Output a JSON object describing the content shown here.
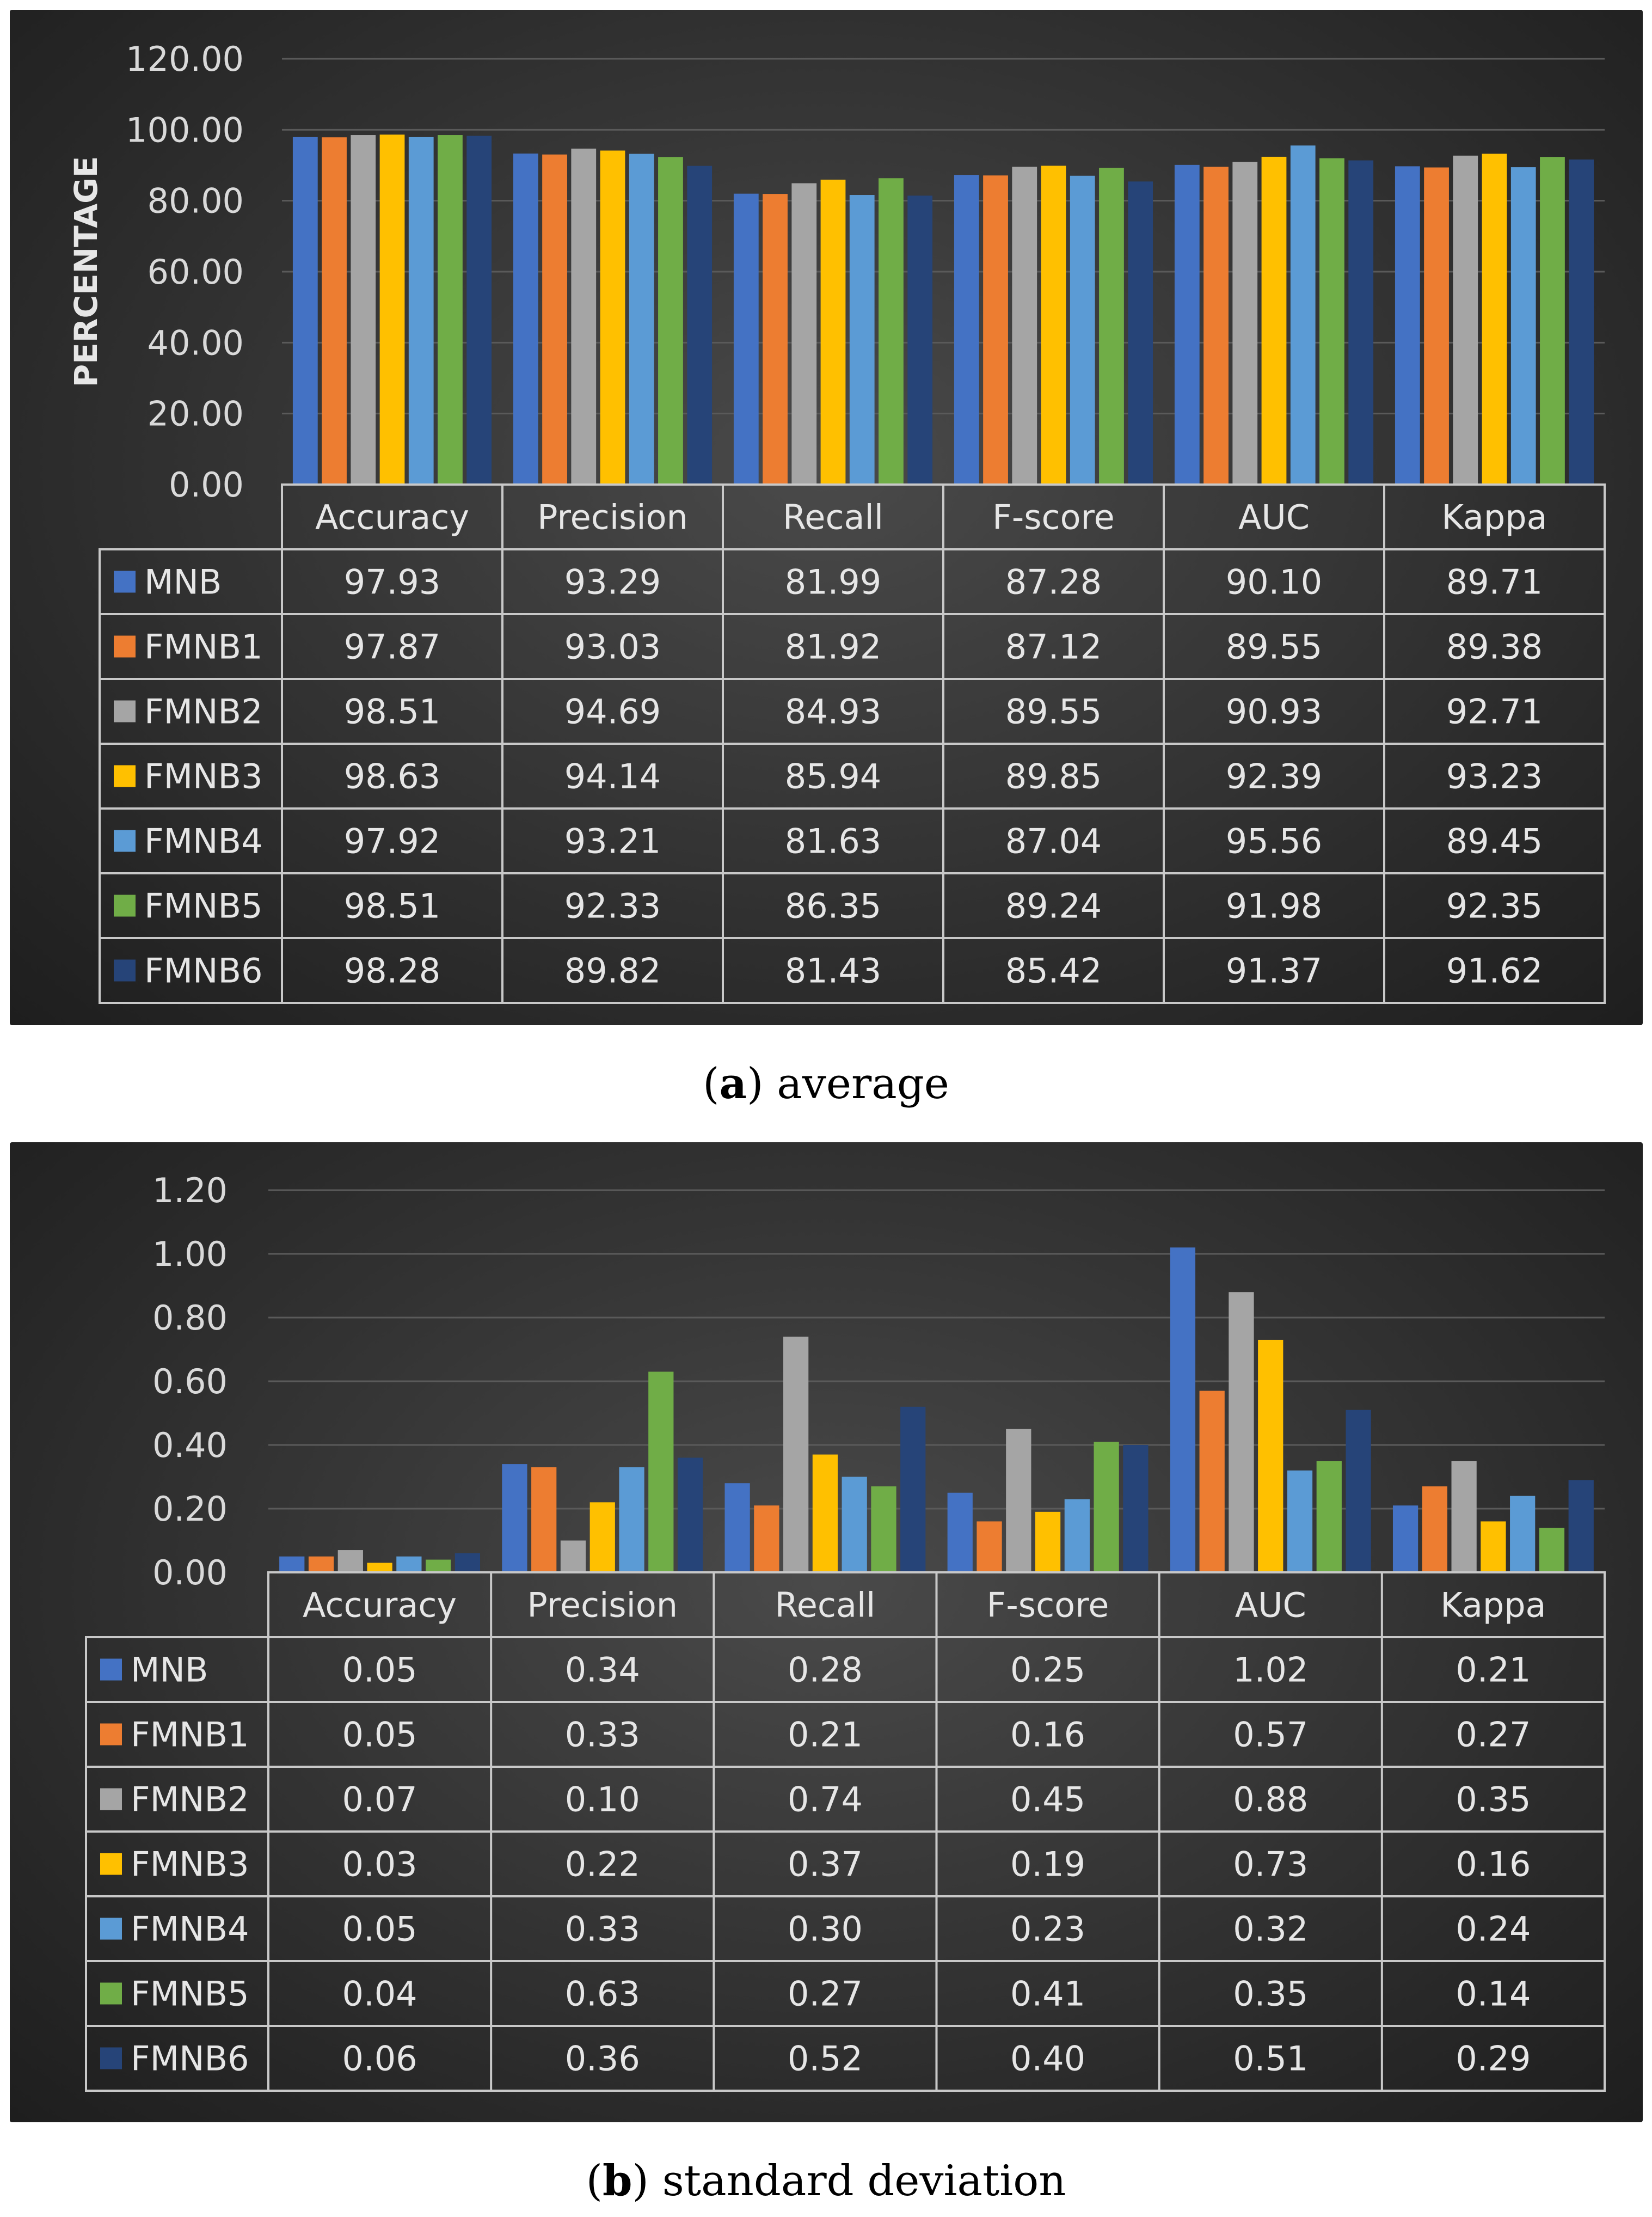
{
  "captions": [
    {
      "letter": "a",
      "text": "average"
    },
    {
      "letter": "b",
      "text": "standard deviation"
    }
  ],
  "colors": {
    "MNB": "#4472c4",
    "FMNB1": "#ed7d31",
    "FMNB2": "#a5a5a5",
    "FMNB3": "#ffc000",
    "FMNB4": "#5b9bd5",
    "FMNB5": "#70ad47",
    "FMNB6": "#264478"
  },
  "chart_data": [
    {
      "type": "bar",
      "title": "",
      "ylabel": "PERCENTAGE",
      "xlabel": "",
      "ylim": [
        0,
        120
      ],
      "yticks": [
        "0.00",
        "20.00",
        "40.00",
        "60.00",
        "80.00",
        "100.00",
        "120.00"
      ],
      "legend": "data-table",
      "categories": [
        "Accuracy",
        "Precision",
        "Recall",
        "F-score",
        "AUC",
        "Kappa"
      ],
      "series": [
        {
          "name": "MNB",
          "values": [
            97.93,
            93.29,
            81.99,
            87.28,
            90.1,
            89.71
          ],
          "labels": [
            "97.93",
            "93.29",
            "81.99",
            "87.28",
            "90.10",
            "89.71"
          ]
        },
        {
          "name": "FMNB1",
          "values": [
            97.87,
            93.03,
            81.92,
            87.12,
            89.55,
            89.38
          ],
          "labels": [
            "97.87",
            "93.03",
            "81.92",
            "87.12",
            "89.55",
            "89.38"
          ]
        },
        {
          "name": "FMNB2",
          "values": [
            98.51,
            94.69,
            84.93,
            89.55,
            90.93,
            92.71
          ],
          "labels": [
            "98.51",
            "94.69",
            "84.93",
            "89.55",
            "90.93",
            "92.71"
          ]
        },
        {
          "name": "FMNB3",
          "values": [
            98.63,
            94.14,
            85.94,
            89.85,
            92.39,
            93.23
          ],
          "labels": [
            "98.63",
            "94.14",
            "85.94",
            "89.85",
            "92.39",
            "93.23"
          ]
        },
        {
          "name": "FMNB4",
          "values": [
            97.92,
            93.21,
            81.63,
            87.04,
            95.56,
            89.45
          ],
          "labels": [
            "97.92",
            "93.21",
            "81.63",
            "87.04",
            "95.56",
            "89.45"
          ]
        },
        {
          "name": "FMNB5",
          "values": [
            98.51,
            92.33,
            86.35,
            89.24,
            91.98,
            92.35
          ],
          "labels": [
            "98.51",
            "92.33",
            "86.35",
            "89.24",
            "91.98",
            "92.35"
          ]
        },
        {
          "name": "FMNB6",
          "values": [
            98.28,
            89.82,
            81.43,
            85.42,
            91.37,
            91.62
          ],
          "labels": [
            "98.28",
            "89.82",
            "81.43",
            "85.42",
            "91.37",
            "91.62"
          ]
        }
      ]
    },
    {
      "type": "bar",
      "title": "",
      "ylabel": "",
      "xlabel": "",
      "ylim": [
        0,
        1.2
      ],
      "yticks": [
        "0.00",
        "0.20",
        "0.40",
        "0.60",
        "0.80",
        "1.00",
        "1.20"
      ],
      "legend": "data-table",
      "categories": [
        "Accuracy",
        "Precision",
        "Recall",
        "F-score",
        "AUC",
        "Kappa"
      ],
      "series": [
        {
          "name": "MNB",
          "values": [
            0.05,
            0.34,
            0.28,
            0.25,
            1.02,
            0.21
          ],
          "labels": [
            "0.05",
            "0.34",
            "0.28",
            "0.25",
            "1.02",
            "0.21"
          ]
        },
        {
          "name": "FMNB1",
          "values": [
            0.05,
            0.33,
            0.21,
            0.16,
            0.57,
            0.27
          ],
          "labels": [
            "0.05",
            "0.33",
            "0.21",
            "0.16",
            "0.57",
            "0.27"
          ]
        },
        {
          "name": "FMNB2",
          "values": [
            0.07,
            0.1,
            0.74,
            0.45,
            0.88,
            0.35
          ],
          "labels": [
            "0.07",
            "0.10",
            "0.74",
            "0.45",
            "0.88",
            "0.35"
          ]
        },
        {
          "name": "FMNB3",
          "values": [
            0.03,
            0.22,
            0.37,
            0.19,
            0.73,
            0.16
          ],
          "labels": [
            "0.03",
            "0.22",
            "0.37",
            "0.19",
            "0.73",
            "0.16"
          ]
        },
        {
          "name": "FMNB4",
          "values": [
            0.05,
            0.33,
            0.3,
            0.23,
            0.32,
            0.24
          ],
          "labels": [
            "0.05",
            "0.33",
            "0.30",
            "0.23",
            "0.32",
            "0.24"
          ]
        },
        {
          "name": "FMNB5",
          "values": [
            0.04,
            0.63,
            0.27,
            0.41,
            0.35,
            0.14
          ],
          "labels": [
            "0.04",
            "0.63",
            "0.27",
            "0.41",
            "0.35",
            "0.14"
          ]
        },
        {
          "name": "FMNB6",
          "values": [
            0.06,
            0.36,
            0.52,
            0.4,
            0.51,
            0.29
          ],
          "labels": [
            "0.06",
            "0.36",
            "0.52",
            "0.40",
            "0.51",
            "0.29"
          ]
        }
      ]
    }
  ]
}
